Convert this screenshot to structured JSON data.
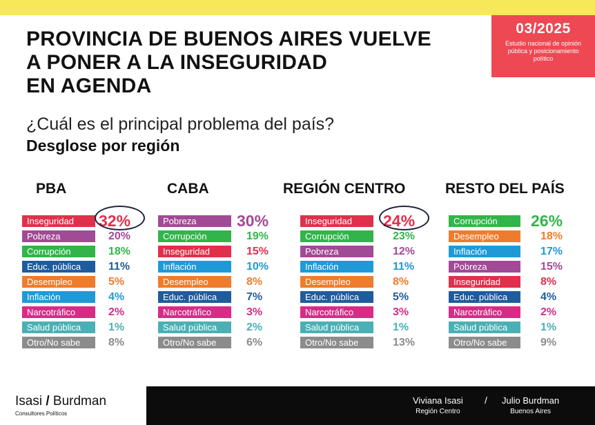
{
  "header": {
    "title_lines": [
      "PROVINCIA DE BUENOS AIRES VUELVE",
      "A PONER A LA INSEGURIDAD",
      "EN AGENDA"
    ],
    "date": "03/2025",
    "date_desc": "Estudio nacional de opinión pública y posicionamiento político",
    "question": "¿Cuál es el principal problema del país?",
    "subtitle": "Desglose por región"
  },
  "colors": {
    "Inseguridad": "#e0304b",
    "Pobreza": "#a14a95",
    "Corrupción": "#31b54a",
    "Educ. pública": "#1f5c9c",
    "Desempleo": "#ef7c2c",
    "Inflación": "#1f9ad6",
    "Narcotráfico": "#d92b86",
    "Salud pública": "#4ab0b5",
    "Otro/No sabe": "#8c8c8c"
  },
  "chart_data": [
    {
      "type": "table",
      "title": "PBA",
      "items": [
        {
          "label": "Inseguridad",
          "value": 32,
          "text": "32%"
        },
        {
          "label": "Pobreza",
          "value": 20,
          "text": "20%"
        },
        {
          "label": "Corrupción",
          "value": 18,
          "text": "18%"
        },
        {
          "label": "Educ. pública",
          "value": 11,
          "text": "11%"
        },
        {
          "label": "Desempleo",
          "value": 5,
          "text": "5%"
        },
        {
          "label": "Inflación",
          "value": 4,
          "text": "4%"
        },
        {
          "label": "Narcotráfico",
          "value": 2,
          "text": "2%"
        },
        {
          "label": "Salud pública",
          "value": 1,
          "text": "1%"
        },
        {
          "label": "Otro/No sabe",
          "value": 8,
          "text": "8%"
        }
      ],
      "circled": true
    },
    {
      "type": "table",
      "title": "CABA",
      "items": [
        {
          "label": "Pobreza",
          "value": 30,
          "text": "30%"
        },
        {
          "label": "Corrupción",
          "value": 19,
          "text": "19%"
        },
        {
          "label": "Inseguridad",
          "value": 15,
          "text": "15%"
        },
        {
          "label": "Inflación",
          "value": 10,
          "text": "10%"
        },
        {
          "label": "Desempleo",
          "value": 8,
          "text": "8%"
        },
        {
          "label": "Educ. pública",
          "value": 7,
          "text": "7%"
        },
        {
          "label": "Narcotráfico",
          "value": 3,
          "text": "3%"
        },
        {
          "label": "Salud pública",
          "value": 2,
          "text": "2%"
        },
        {
          "label": "Otro/No sabe",
          "value": 6,
          "text": "6%"
        }
      ],
      "circled": false
    },
    {
      "type": "table",
      "title": "REGIÓN CENTRO",
      "items": [
        {
          "label": "Inseguridad",
          "value": 24,
          "text": "24%"
        },
        {
          "label": "Corrupción",
          "value": 23,
          "text": "23%"
        },
        {
          "label": "Pobreza",
          "value": 12,
          "text": "12%"
        },
        {
          "label": "Inflación",
          "value": 11,
          "text": "11%"
        },
        {
          "label": "Desempleo",
          "value": 8,
          "text": "8%"
        },
        {
          "label": "Educ. pública",
          "value": 5,
          "text": "5%"
        },
        {
          "label": "Narcotráfico",
          "value": 3,
          "text": "3%"
        },
        {
          "label": "Salud pública",
          "value": 1,
          "text": "1%"
        },
        {
          "label": "Otro/No sabe",
          "value": 13,
          "text": "13%"
        }
      ],
      "circled": true
    },
    {
      "type": "table",
      "title": "RESTO DEL PAÍS",
      "items": [
        {
          "label": "Corrupción",
          "value": 26,
          "text": "26%"
        },
        {
          "label": "Desempleo",
          "value": 18,
          "text": "18%"
        },
        {
          "label": "Inflación",
          "value": 17,
          "text": "17%"
        },
        {
          "label": "Pobreza",
          "value": 15,
          "text": "15%"
        },
        {
          "label": "Inseguridad",
          "value": 8,
          "text": "8%"
        },
        {
          "label": "Educ. pública",
          "value": 4,
          "text": "4%"
        },
        {
          "label": "Narcotráfico",
          "value": 2,
          "text": "2%"
        },
        {
          "label": "Salud pública",
          "value": 1,
          "text": "1%"
        },
        {
          "label": "Otro/No sabe",
          "value": 9,
          "text": "9%"
        }
      ],
      "circled": false
    }
  ],
  "footer": {
    "brand_left": "Isasi",
    "brand_slash": "/",
    "brand_right": "Burdman",
    "brand_sub": "Consultores Políticos",
    "author1_name": "Viviana Isasi",
    "author1_role": "Región Centro",
    "separator": "/",
    "author2_name": "Julio Burdman",
    "author2_role": "Buenos Aires"
  }
}
